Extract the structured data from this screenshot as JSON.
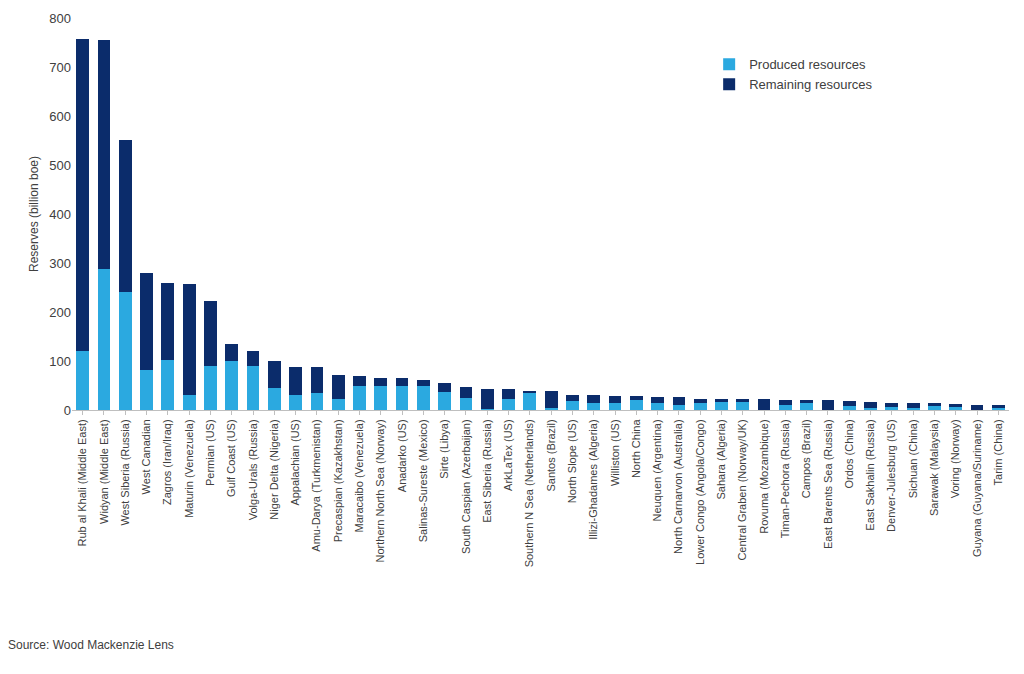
{
  "chart_data": {
    "type": "bar",
    "stacked": true,
    "y_label": "Reserves (billion boe)",
    "annotations": [
      "Source: Wood Mackenzie Lens"
    ],
    "categories": [
      "Rub al Khali (Middle East)",
      "Widyan (Middle East)",
      "West Siberia (Russia)",
      "West Canadian",
      "Zagros (Iran/Iraq)",
      "Maturin (Venezuela)",
      "Permian (US)",
      "Gulf Coast (US)",
      "Volga-Urals (Russia)",
      "Niger Delta (Nigeria)",
      "Appalachian (US)",
      "Amu-Darya (Turkmenistan)",
      "Precaspian (Kazakhstan)",
      "Maracaibo (Venezuela)",
      "Northern North Sea (Norway)",
      "Anadarko (US)",
      "Salinas-Sureste (Mexico)",
      "Sirte (Libya)",
      "South Caspian (Azerbaijan)",
      "East Siberia (Russia)",
      "ArkLaTex (US)",
      "Southern N Sea (Netherlands)",
      "Santos (Brazil)",
      "North Slope (US)",
      "Illizi-Ghadames (Algeria)",
      "Williston (US)",
      "North China",
      "Neuquen (Argentina)",
      "North Carnarvon (Australia)",
      "Lower Congo (Angola/Congo)",
      "Sahara (Algeria)",
      "Central Graben (Norway/UK)",
      "Rovuma (Mozambique)",
      "Timan-Pechora (Russia)",
      "Campos (Brazil)",
      "East Barents Sea (Russia)",
      "Ordos (China)",
      "East Sakhalin (Russia)",
      "Denver-Julesburg (US)",
      "Sichuan (China)",
      "Sarawak (Malaysia)",
      "Voring (Norway)",
      "Guyana (Guyana/Suriname)",
      "Tarim (China)"
    ],
    "series": [
      {
        "name": "Produced resources",
        "color": "#2ba9e0",
        "values": [
          120,
          287,
          240,
          82,
          103,
          30,
          90,
          100,
          90,
          44,
          30,
          34,
          22,
          50,
          48,
          48,
          50,
          36,
          25,
          3,
          22,
          35,
          5,
          18,
          15,
          14,
          20,
          15,
          10,
          14,
          16,
          18,
          0,
          10,
          14,
          1,
          8,
          4,
          6,
          5,
          8,
          6,
          1,
          4
        ]
      },
      {
        "name": "Remaining resources",
        "color": "#0b2c6b",
        "values": [
          638,
          468,
          312,
          198,
          157,
          228,
          132,
          35,
          30,
          55,
          58,
          53,
          50,
          19,
          17,
          17,
          11,
          20,
          21,
          39,
          20,
          4,
          33,
          12,
          15,
          15,
          8,
          12,
          16,
          9,
          6,
          4,
          22,
          11,
          7,
          19,
          10,
          12,
          9,
          10,
          6,
          6,
          10,
          6
        ]
      }
    ],
    "ylim": [
      0,
      800
    ],
    "yticks": [
      0,
      100,
      200,
      300,
      400,
      500,
      600,
      700,
      800
    ],
    "grid": false,
    "legend": "top right"
  }
}
